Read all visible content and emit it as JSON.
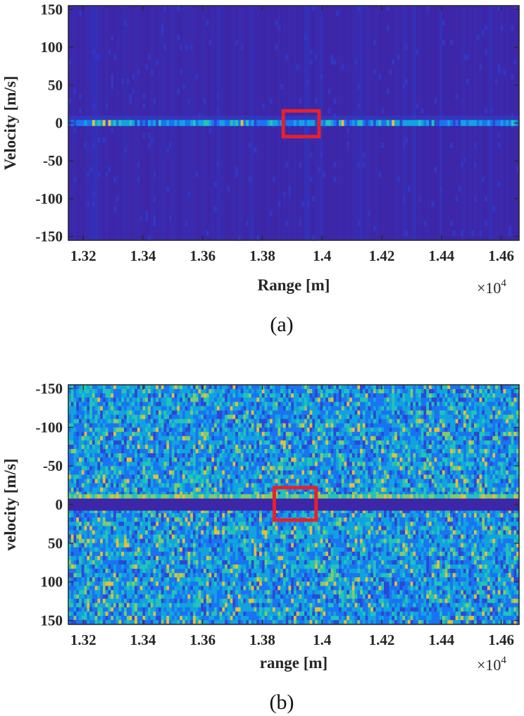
{
  "chart_data": [
    {
      "type": "heatmap",
      "caption": "(a)",
      "xlabel": "Range [m]",
      "ylabel": "Velocity [m/s]",
      "x_exponent": {
        "times": "×10",
        "power": "4"
      },
      "xlim": [
        13150,
        14660
      ],
      "ylim": [
        -155,
        155
      ],
      "y_direction": "normal",
      "xticks": [
        13200,
        13400,
        13600,
        13800,
        14000,
        14200,
        14400,
        14600
      ],
      "xtick_labels": [
        "1.32",
        "1.34",
        "1.36",
        "1.38",
        "1.4",
        "1.42",
        "1.44",
        "1.46"
      ],
      "yticks": [
        150,
        100,
        50,
        0,
        -50,
        -100,
        -150
      ],
      "ytick_labels": [
        "150",
        "100",
        "50",
        "0",
        "-50",
        "-100",
        "-150"
      ],
      "background_level": "low",
      "bright_band": {
        "velocity": 0,
        "half_width": 4,
        "level": "medium"
      },
      "highlight_box": {
        "x_range": [
          13870,
          13990
        ],
        "y_range": [
          -18,
          16
        ],
        "color": "#e8202a"
      },
      "colormap": [
        "#3d26a8",
        "#2c47d6",
        "#1a74f2",
        "#11a3de",
        "#22c3b8",
        "#7ecc6c",
        "#e2c03a",
        "#f9f71e"
      ]
    },
    {
      "type": "heatmap",
      "caption": "(b)",
      "xlabel": "range [m]",
      "ylabel": "velocity [m/s]",
      "x_exponent": {
        "times": "×10",
        "power": "4"
      },
      "xlim": [
        13150,
        14660
      ],
      "ylim": [
        -155,
        155
      ],
      "y_direction": "reversed",
      "xticks": [
        13200,
        13400,
        13600,
        13800,
        14000,
        14200,
        14400,
        14600
      ],
      "xtick_labels": [
        "1.32",
        "1.34",
        "1.36",
        "1.38",
        "1.4",
        "1.42",
        "1.44",
        "1.46"
      ],
      "yticks": [
        -150,
        -100,
        -50,
        0,
        50,
        100,
        150
      ],
      "ytick_labels": [
        "-150",
        "-100",
        "-50",
        "0",
        "50",
        "100",
        "150"
      ],
      "background_level": "high",
      "dark_band": {
        "velocity": 0,
        "half_width": 6
      },
      "highlight_box": {
        "x_range": [
          13840,
          13980
        ],
        "y_range": [
          -22,
          20
        ],
        "color": "#e8202a"
      },
      "colormap": [
        "#3d26a8",
        "#2c47d6",
        "#1a74f2",
        "#11a3de",
        "#22c3b8",
        "#7ecc6c",
        "#e2c03a",
        "#f9f71e"
      ]
    }
  ]
}
